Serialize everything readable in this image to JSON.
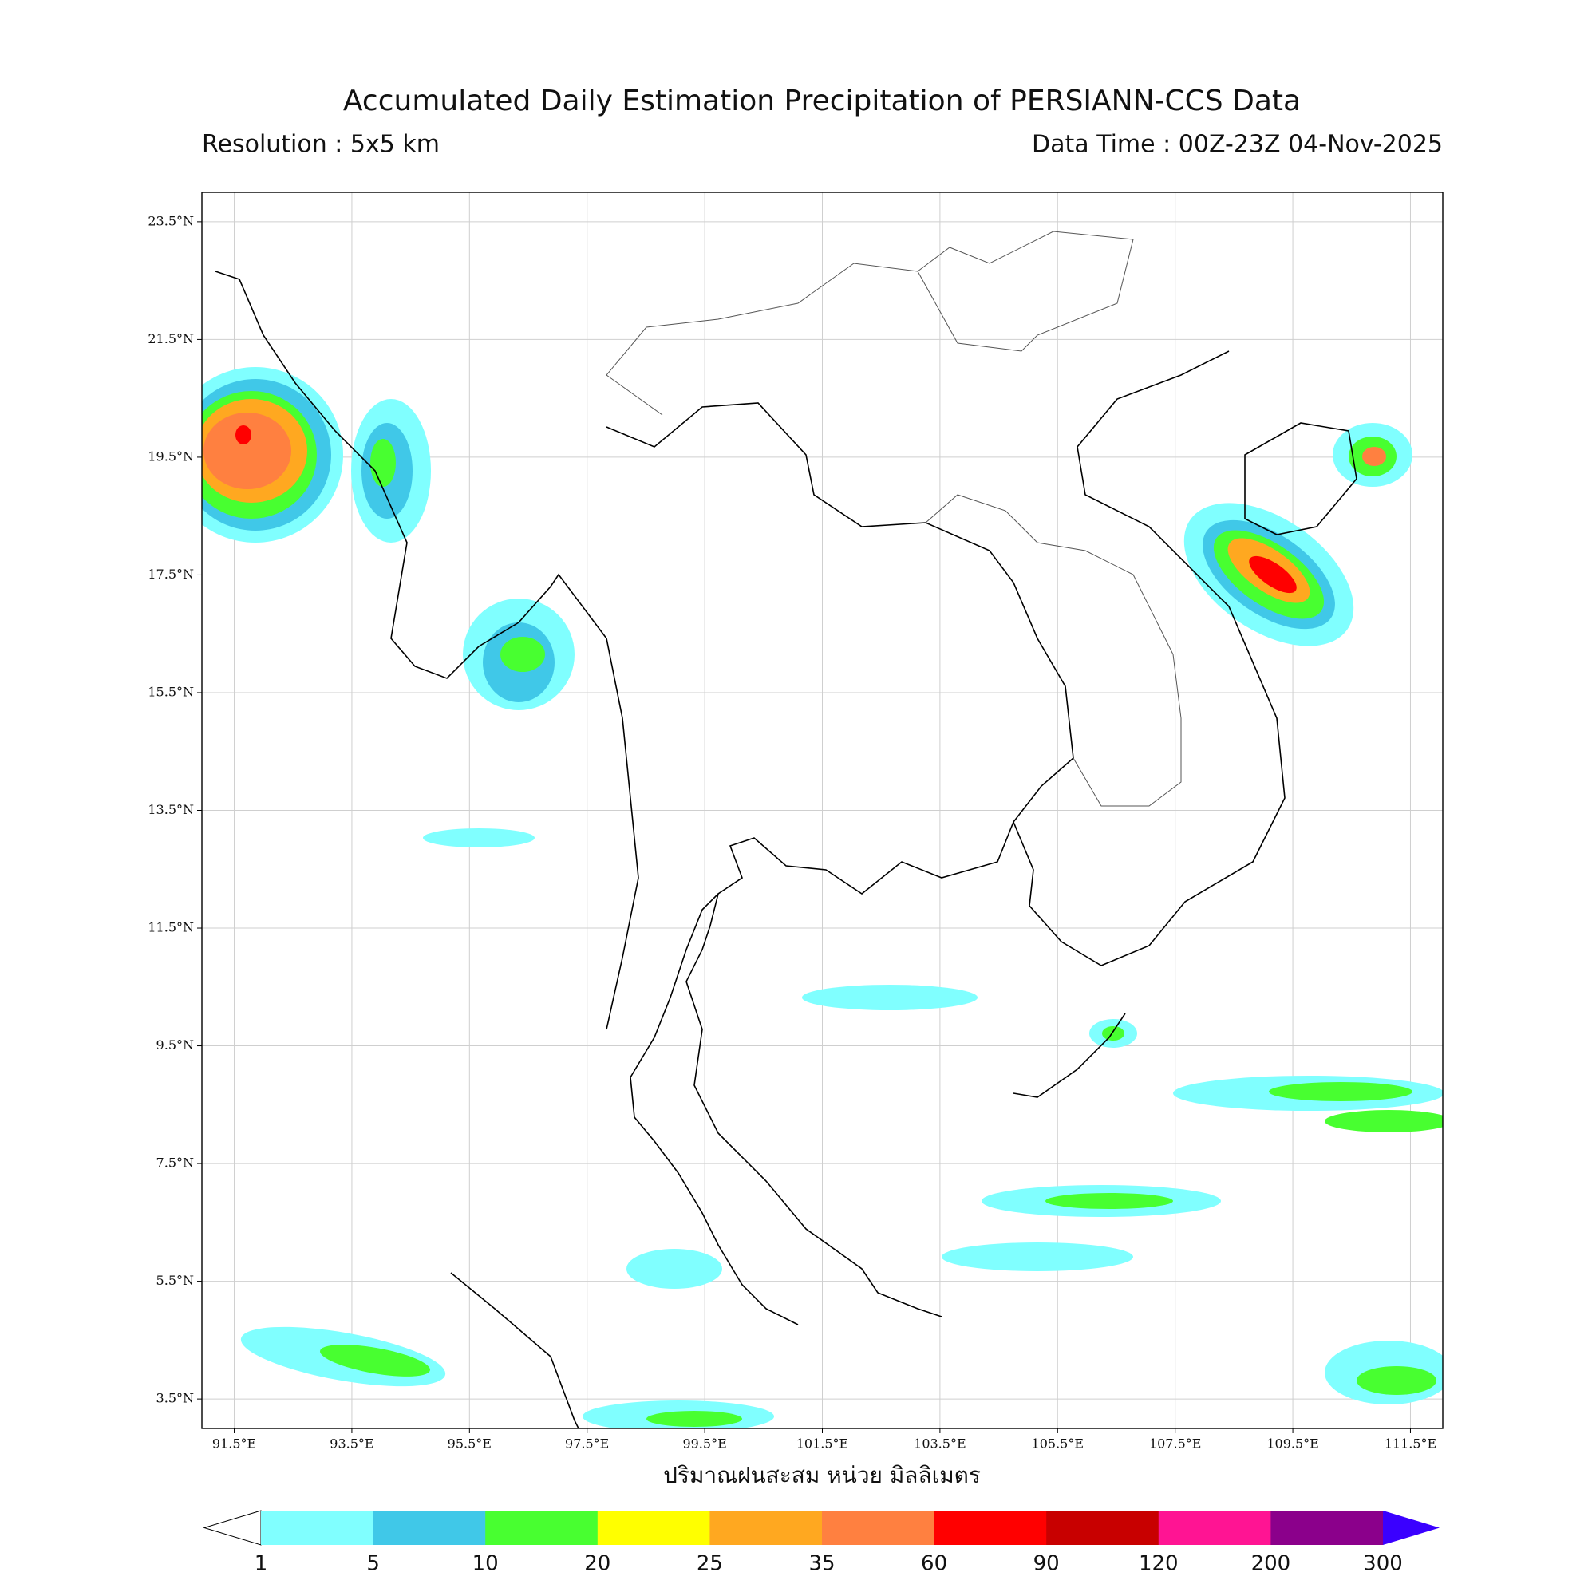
{
  "header": {
    "title": "Accumulated Daily Estimation Precipitation of PERSIANN-CCS Data",
    "resolution": "Resolution : 5x5 km",
    "data_time": "Data Time : 00Z-23Z 04-Nov-2025"
  },
  "map": {
    "xlim": [
      90.95,
      112.05
    ],
    "ylim": [
      3.0,
      24.0
    ],
    "xticks": [
      {
        "value": 91.5,
        "label": "91.5°E"
      },
      {
        "value": 93.5,
        "label": "93.5°E"
      },
      {
        "value": 95.5,
        "label": "95.5°E"
      },
      {
        "value": 97.5,
        "label": "97.5°E"
      },
      {
        "value": 99.5,
        "label": "99.5°E"
      },
      {
        "value": 101.5,
        "label": "101.5°E"
      },
      {
        "value": 103.5,
        "label": "103.5°E"
      },
      {
        "value": 105.5,
        "label": "105.5°E"
      },
      {
        "value": 107.5,
        "label": "107.5°E"
      },
      {
        "value": 109.5,
        "label": "109.5°E"
      },
      {
        "value": 111.5,
        "label": "111.5°E"
      }
    ],
    "yticks": [
      {
        "value": 23.5,
        "label": "23.5°N"
      },
      {
        "value": 21.5,
        "label": "21.5°N"
      },
      {
        "value": 19.5,
        "label": "19.5°N"
      },
      {
        "value": 17.5,
        "label": "17.5°N"
      },
      {
        "value": 15.5,
        "label": "15.5°N"
      },
      {
        "value": 13.5,
        "label": "13.5°N"
      },
      {
        "value": 11.5,
        "label": "11.5°N"
      },
      {
        "value": 9.5,
        "label": "9.5°N"
      },
      {
        "value": 7.5,
        "label": "7.5°N"
      },
      {
        "value": 5.5,
        "label": "5.5°N"
      },
      {
        "value": 3.5,
        "label": "3.5°N"
      }
    ],
    "grid": true,
    "xlabel": "ปริมาณฝนสะสม หน่วย มิลลิเมตร"
  },
  "colorbar": {
    "levels": [
      1,
      5,
      10,
      20,
      25,
      35,
      60,
      90,
      120,
      200,
      300
    ],
    "colors": [
      "#80ffff",
      "#40c8e8",
      "#48ff30",
      "#ffff00",
      "#ffa820",
      "#ff8040",
      "#ff0000",
      "#c80000",
      "#ff1493",
      "#8b008b"
    ],
    "over_color": "#3a00ff"
  }
}
